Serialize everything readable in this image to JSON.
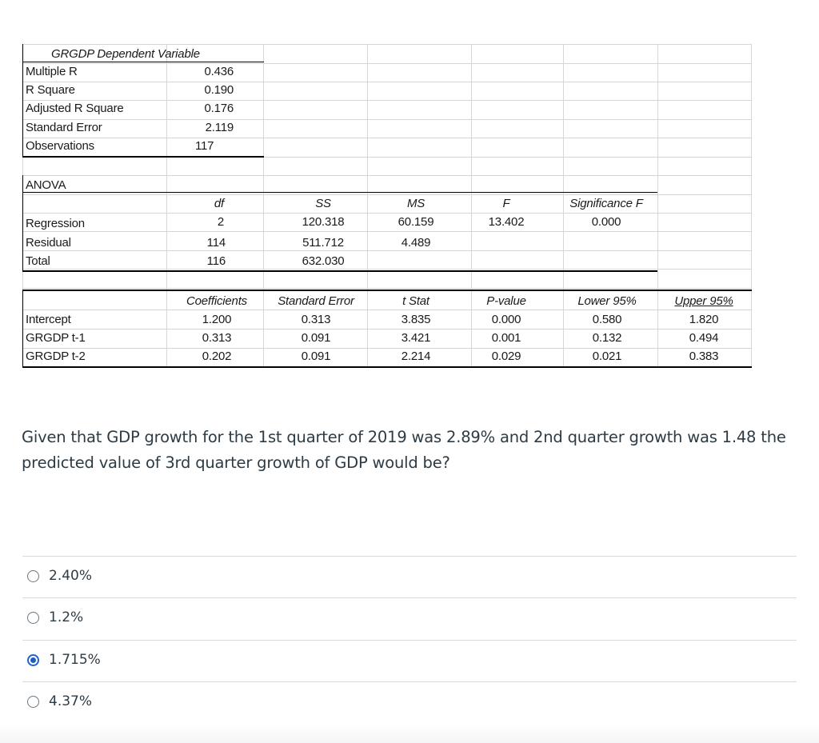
{
  "regression_stats": {
    "header": "GRGDP Dependent Variable",
    "rows": [
      {
        "label": "Multiple R",
        "value": "0.436"
      },
      {
        "label": "R Square",
        "value": "0.190"
      },
      {
        "label": "Adjusted R Square",
        "value": "0.176"
      },
      {
        "label": "Standard Error",
        "value": "2.119"
      },
      {
        "label": "Observations",
        "value": "117"
      }
    ]
  },
  "anova": {
    "title": "ANOVA",
    "headers": [
      "df",
      "SS",
      "MS",
      "F",
      "Significance F"
    ],
    "rows": [
      {
        "label": "Regression",
        "df": "2",
        "ss": "120.318",
        "ms": "60.159",
        "f": "13.402",
        "sig": "0.000"
      },
      {
        "label": "Residual",
        "df": "114",
        "ss": "511.712",
        "ms": "4.489"
      },
      {
        "label": "Total",
        "df": "116",
        "ss": "632.030"
      }
    ]
  },
  "coefficients": {
    "headers": [
      "Coefficients",
      "Standard Error",
      "t Stat",
      "P-value",
      "Lower 95%",
      "Upper 95%"
    ],
    "rows": [
      {
        "label": "Intercept",
        "coef": "1.200",
        "se": "0.313",
        "t": "3.835",
        "p": "0.000",
        "lower": "0.580",
        "upper": "1.820"
      },
      {
        "label": "GRGDP t-1",
        "coef": "0.313",
        "se": "0.091",
        "t": "3.421",
        "p": "0.001",
        "lower": "0.132",
        "upper": "0.494"
      },
      {
        "label": "GRGDP t-2",
        "coef": "0.202",
        "se": "0.091",
        "t": "2.214",
        "p": "0.029",
        "lower": "0.021",
        "upper": "0.383"
      }
    ]
  },
  "question": {
    "text": "Given that GDP growth for the 1st quarter of 2019 was 2.89% and 2nd quarter growth was 1.48 the predicted value of 3rd quarter growth of GDP would be?"
  },
  "options": [
    {
      "label": "2.40%",
      "selected": false
    },
    {
      "label": "1.2%",
      "selected": false
    },
    {
      "label": "1.715%",
      "selected": true
    },
    {
      "label": "4.37%",
      "selected": false
    }
  ],
  "colors": {
    "selected_radio": "#1f5bc7",
    "text": "#2d3b45"
  }
}
